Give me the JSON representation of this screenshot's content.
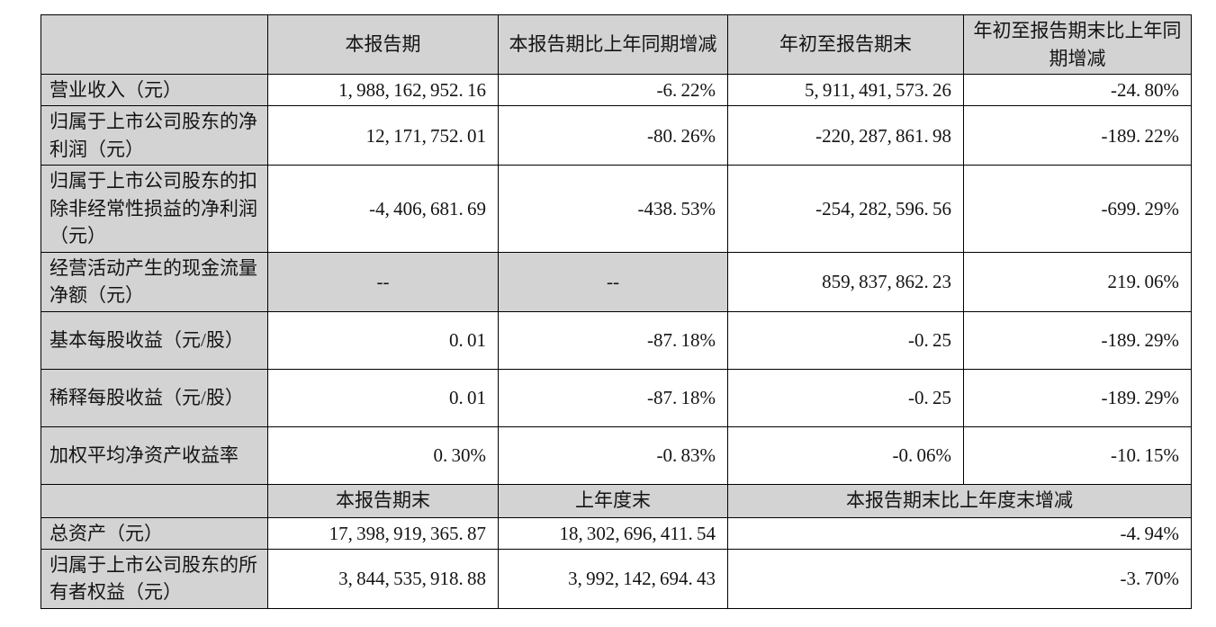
{
  "page": {
    "background": "#ffffff"
  },
  "table": {
    "colors": {
      "shaded_bg": "#d3d3d3",
      "cell_bg": "#ffffff",
      "border": "#000000",
      "text": "#141414"
    },
    "section1": {
      "headers": [
        {
          "text": ""
        },
        {
          "text": "本报告期"
        },
        {
          "text": "本报告期比上年同期增减"
        },
        {
          "text": "年初至报告期末"
        },
        {
          "text": "年初至报告期末比上年同期增减"
        }
      ],
      "rows": [
        {
          "cells": [
            {
              "text": "营业收入（元）",
              "type": "label"
            },
            {
              "text": "1,988,162,952.16",
              "type": "num"
            },
            {
              "text": "-6.22%",
              "type": "num"
            },
            {
              "text": "5,911,491,573.26",
              "type": "num"
            },
            {
              "text": "-24.80%",
              "type": "num"
            }
          ]
        },
        {
          "cells": [
            {
              "text": "归属于上市公司股东的净利润（元）",
              "type": "label"
            },
            {
              "text": "12,171,752.01",
              "type": "num"
            },
            {
              "text": "-80.26%",
              "type": "num"
            },
            {
              "text": "-220,287,861.98",
              "type": "num"
            },
            {
              "text": "-189.22%",
              "type": "num"
            }
          ]
        },
        {
          "cells": [
            {
              "text": "归属于上市公司股东的扣除非经常性损益的净利润（元）",
              "type": "label"
            },
            {
              "text": "-4,406,681.69",
              "type": "num"
            },
            {
              "text": "-438.53%",
              "type": "num"
            },
            {
              "text": "-254,282,596.56",
              "type": "num"
            },
            {
              "text": "-699.29%",
              "type": "num"
            }
          ]
        },
        {
          "cells": [
            {
              "text": "经营活动产生的现金流量净额（元）",
              "type": "label"
            },
            {
              "text": "--",
              "type": "dash"
            },
            {
              "text": "--",
              "type": "dash"
            },
            {
              "text": "859,837,862.23",
              "type": "num"
            },
            {
              "text": "219.06%",
              "type": "num"
            }
          ]
        },
        {
          "cells": [
            {
              "text": "基本每股收益（元/股）",
              "type": "label"
            },
            {
              "text": "0.01",
              "type": "num"
            },
            {
              "text": "-87.18%",
              "type": "num"
            },
            {
              "text": "-0.25",
              "type": "num"
            },
            {
              "text": "-189.29%",
              "type": "num"
            }
          ]
        },
        {
          "cells": [
            {
              "text": "稀释每股收益（元/股）",
              "type": "label"
            },
            {
              "text": "0.01",
              "type": "num"
            },
            {
              "text": "-87.18%",
              "type": "num"
            },
            {
              "text": "-0.25",
              "type": "num"
            },
            {
              "text": "-189.29%",
              "type": "num"
            }
          ]
        },
        {
          "cells": [
            {
              "text": "加权平均净资产收益率",
              "type": "label"
            },
            {
              "text": "0.30%",
              "type": "num"
            },
            {
              "text": "-0.83%",
              "type": "num"
            },
            {
              "text": "-0.06%",
              "type": "num"
            },
            {
              "text": "-10.15%",
              "type": "num"
            }
          ]
        }
      ]
    },
    "section2": {
      "headers": [
        {
          "text": ""
        },
        {
          "text": "本报告期末"
        },
        {
          "text": "上年度末"
        },
        {
          "text": "本报告期末比上年度末增减",
          "colspan": 2
        }
      ],
      "rows": [
        {
          "cells": [
            {
              "text": "总资产（元）",
              "type": "label"
            },
            {
              "text": "17,398,919,365.87",
              "type": "num"
            },
            {
              "text": "18,302,696,411.54",
              "type": "num"
            },
            {
              "text": "-4.94%",
              "type": "num",
              "colspan": 2
            }
          ]
        },
        {
          "cells": [
            {
              "text": "归属于上市公司股东的所有者权益（元）",
              "type": "label"
            },
            {
              "text": "3,844,535,918.88",
              "type": "num"
            },
            {
              "text": "3,992,142,694.43",
              "type": "num"
            },
            {
              "text": "-3.70%",
              "type": "num",
              "colspan": 2
            }
          ]
        }
      ]
    }
  }
}
